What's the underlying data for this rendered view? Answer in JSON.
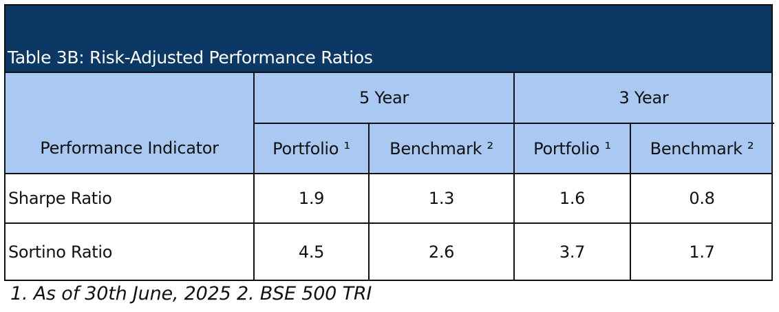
{
  "table": {
    "title": "Table 3B: Risk-Adjusted Performance Ratios",
    "header": {
      "indicator_label": "Performance Indicator",
      "groups": [
        {
          "label": "5 Year",
          "cols": [
            "Portfolio ¹",
            "Benchmark ²"
          ]
        },
        {
          "label": "3 Year",
          "cols": [
            "Portfolio ¹",
            "Benchmark ²"
          ]
        }
      ]
    },
    "rows": [
      {
        "label": "Sharpe Ratio",
        "values": [
          "1.9",
          "1.3",
          "1.6",
          "0.8"
        ]
      },
      {
        "label": "Sortino Ratio",
        "values": [
          "4.5",
          "2.6",
          "3.7",
          "1.7"
        ]
      }
    ],
    "footnote": "1. As of 30th June, 2025 2. BSE 500 TRI"
  },
  "colors": {
    "title_bg": "#0b3865",
    "header_bg": "#a9c8f2",
    "border": "#111111"
  }
}
